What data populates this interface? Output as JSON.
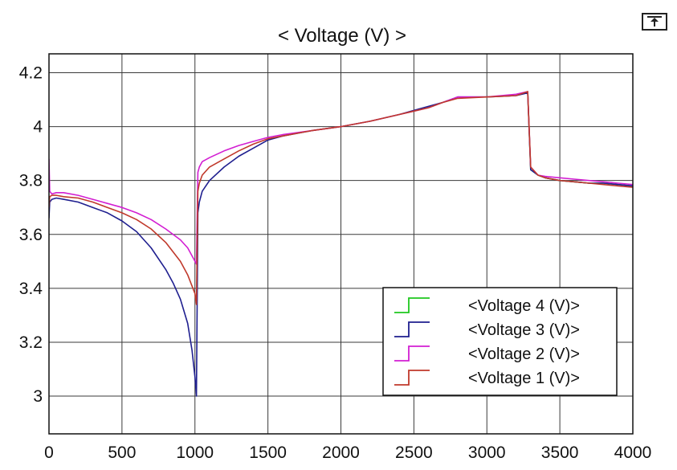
{
  "toolbar": {
    "dock_icon": "undock-arrow-icon"
  },
  "chart_data": {
    "type": "line",
    "title": "< Voltage (V) >",
    "xlabel": "",
    "ylabel": "",
    "xlim": [
      0,
      4000
    ],
    "ylim": [
      2.86,
      4.27
    ],
    "xticks": [
      0,
      500,
      1000,
      1500,
      2000,
      2500,
      3000,
      3500,
      4000
    ],
    "yticks": [
      3,
      3.2,
      3.4,
      3.6,
      3.8,
      4,
      4.2
    ],
    "xtick_labels": [
      "0",
      "500",
      "1000",
      "1500",
      "2000",
      "2500",
      "3000",
      "3500",
      "4000"
    ],
    "ytick_labels": [
      "3",
      "3.2",
      "3.4",
      "3.6",
      "3.8",
      "4",
      "4.2"
    ],
    "grid": true,
    "legend_position": "bottom-right",
    "series": [
      {
        "name": "<Voltage 4 (V)>",
        "color": "#1ec81e",
        "x": [
          3280,
          3300,
          3350,
          3400,
          3500,
          3600,
          3700,
          3800,
          3900,
          4000
        ],
        "y": [
          4.13,
          3.84,
          3.82,
          3.81,
          3.8,
          3.795,
          3.79,
          3.79,
          3.785,
          3.78
        ]
      },
      {
        "name": "<Voltage 3 (V)>",
        "color": "#1f1f8f",
        "x": [
          0,
          5,
          20,
          50,
          100,
          200,
          300,
          400,
          500,
          600,
          700,
          800,
          850,
          900,
          950,
          980,
          1000,
          1010,
          1020,
          1030,
          1050,
          1100,
          1200,
          1300,
          1400,
          1500,
          1600,
          1800,
          2000,
          2200,
          2400,
          2600,
          2700,
          2800,
          3000,
          3200,
          3280,
          3300,
          3350,
          3400,
          3500,
          3600,
          3700,
          3800,
          3900,
          4000
        ],
        "y": [
          3.66,
          3.72,
          3.73,
          3.735,
          3.73,
          3.72,
          3.7,
          3.68,
          3.65,
          3.61,
          3.55,
          3.47,
          3.42,
          3.36,
          3.27,
          3.17,
          3.07,
          3.0,
          3.68,
          3.72,
          3.76,
          3.8,
          3.85,
          3.89,
          3.92,
          3.95,
          3.965,
          3.985,
          4.0,
          4.02,
          4.045,
          4.075,
          4.09,
          4.11,
          4.11,
          4.115,
          4.125,
          3.84,
          3.82,
          3.81,
          3.8,
          3.795,
          3.79,
          3.79,
          3.785,
          3.78
        ]
      },
      {
        "name": "<Voltage 2 (V)>",
        "color": "#d21ed2",
        "x": [
          0,
          5,
          20,
          50,
          100,
          200,
          300,
          400,
          500,
          600,
          700,
          800,
          900,
          950,
          1000,
          1010,
          1020,
          1030,
          1050,
          1100,
          1200,
          1300,
          1400,
          1500,
          1600,
          1800,
          2000,
          2200,
          2400,
          2600,
          2700,
          2800,
          3000,
          3200,
          3280,
          3300,
          3350,
          3400,
          3500,
          3600,
          3700,
          3800,
          3900,
          4000
        ],
        "y": [
          3.88,
          3.76,
          3.75,
          3.755,
          3.755,
          3.745,
          3.73,
          3.715,
          3.7,
          3.68,
          3.655,
          3.62,
          3.58,
          3.55,
          3.5,
          3.49,
          3.83,
          3.85,
          3.87,
          3.885,
          3.91,
          3.93,
          3.945,
          3.96,
          3.97,
          3.985,
          4.0,
          4.02,
          4.045,
          4.07,
          4.09,
          4.11,
          4.11,
          4.12,
          4.13,
          3.85,
          3.82,
          3.815,
          3.81,
          3.805,
          3.8,
          3.795,
          3.79,
          3.785
        ]
      },
      {
        "name": "<Voltage 1 (V)>",
        "color": "#c0392b",
        "x": [
          0,
          5,
          20,
          50,
          100,
          200,
          300,
          400,
          500,
          600,
          700,
          800,
          900,
          950,
          1000,
          1010,
          1020,
          1030,
          1050,
          1100,
          1200,
          1300,
          1400,
          1500,
          1600,
          1800,
          2000,
          2200,
          2400,
          2600,
          2700,
          2800,
          3000,
          3200,
          3280,
          3300,
          3350,
          3400,
          3500,
          3600,
          3700,
          3800,
          3900,
          4000
        ],
        "y": [
          3.7,
          3.74,
          3.745,
          3.745,
          3.74,
          3.735,
          3.72,
          3.7,
          3.68,
          3.655,
          3.62,
          3.57,
          3.5,
          3.45,
          3.38,
          3.34,
          3.76,
          3.79,
          3.82,
          3.85,
          3.88,
          3.91,
          3.935,
          3.955,
          3.965,
          3.985,
          4.0,
          4.02,
          4.045,
          4.07,
          4.09,
          4.105,
          4.11,
          4.115,
          4.13,
          3.85,
          3.82,
          3.81,
          3.8,
          3.795,
          3.79,
          3.785,
          3.78,
          3.775
        ]
      }
    ]
  }
}
